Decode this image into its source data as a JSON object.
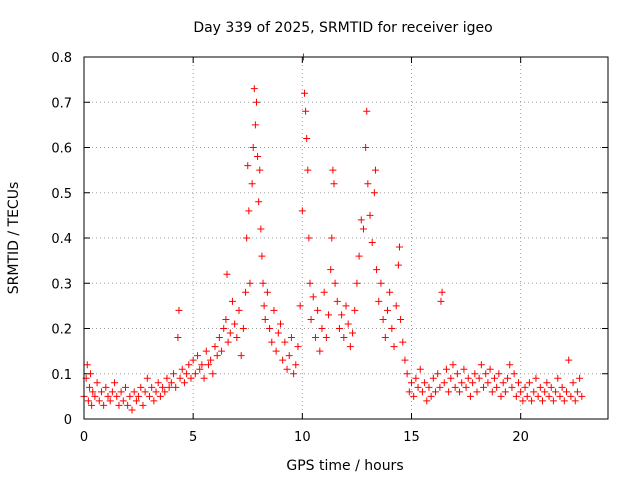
{
  "chart_data": {
    "type": "scatter",
    "title": "Day 339 of 2025, SRMTID for receiver igeo",
    "xlabel": "GPS time / hours",
    "ylabel": "SRMTID / TECUs",
    "xlim": [
      0,
      24
    ],
    "ylim": [
      0,
      0.8
    ],
    "xticks": [
      "0",
      "5",
      "10",
      "15",
      "20"
    ],
    "yticks": [
      "0",
      "0.1",
      "0.2",
      "0.3",
      "0.4",
      "0.5",
      "0.6",
      "0.7",
      "0.8"
    ],
    "grid": true,
    "marker": "+",
    "series": [
      {
        "name": "SRMTID",
        "color": "#ff0000",
        "points": [
          [
            0.0,
            0.05
          ],
          [
            0.1,
            0.09
          ],
          [
            0.15,
            0.12
          ],
          [
            0.2,
            0.04
          ],
          [
            0.25,
            0.07
          ],
          [
            0.3,
            0.1
          ],
          [
            0.35,
            0.03
          ],
          [
            0.4,
            0.06
          ],
          [
            0.5,
            0.05
          ],
          [
            0.6,
            0.08
          ],
          [
            0.7,
            0.04
          ],
          [
            0.8,
            0.06
          ],
          [
            0.9,
            0.03
          ],
          [
            1.0,
            0.07
          ],
          [
            1.1,
            0.05
          ],
          [
            1.2,
            0.04
          ],
          [
            1.3,
            0.06
          ],
          [
            1.4,
            0.08
          ],
          [
            1.5,
            0.05
          ],
          [
            1.6,
            0.03
          ],
          [
            1.7,
            0.06
          ],
          [
            1.8,
            0.04
          ],
          [
            1.9,
            0.07
          ],
          [
            2.0,
            0.03
          ],
          [
            2.1,
            0.05
          ],
          [
            2.2,
            0.02
          ],
          [
            2.3,
            0.06
          ],
          [
            2.4,
            0.04
          ],
          [
            2.5,
            0.05
          ],
          [
            2.6,
            0.07
          ],
          [
            2.7,
            0.03
          ],
          [
            2.8,
            0.06
          ],
          [
            2.9,
            0.09
          ],
          [
            3.0,
            0.05
          ],
          [
            3.1,
            0.07
          ],
          [
            3.2,
            0.04
          ],
          [
            3.3,
            0.06
          ],
          [
            3.4,
            0.08
          ],
          [
            3.5,
            0.05
          ],
          [
            3.6,
            0.07
          ],
          [
            3.7,
            0.06
          ],
          [
            3.8,
            0.09
          ],
          [
            3.9,
            0.07
          ],
          [
            4.0,
            0.08
          ],
          [
            4.1,
            0.1
          ],
          [
            4.2,
            0.07
          ],
          [
            4.3,
            0.18
          ],
          [
            4.35,
            0.24
          ],
          [
            4.4,
            0.09
          ],
          [
            4.5,
            0.11
          ],
          [
            4.6,
            0.08
          ],
          [
            4.7,
            0.1
          ],
          [
            4.8,
            0.12
          ],
          [
            4.9,
            0.09
          ],
          [
            5.0,
            0.13
          ],
          [
            5.1,
            0.1
          ],
          [
            5.2,
            0.14
          ],
          [
            5.3,
            0.11
          ],
          [
            5.4,
            0.12
          ],
          [
            5.5,
            0.09
          ],
          [
            5.6,
            0.15
          ],
          [
            5.7,
            0.12
          ],
          [
            5.8,
            0.13
          ],
          [
            5.9,
            0.1
          ],
          [
            6.0,
            0.16
          ],
          [
            6.1,
            0.14
          ],
          [
            6.2,
            0.18
          ],
          [
            6.3,
            0.15
          ],
          [
            6.4,
            0.2
          ],
          [
            6.5,
            0.22
          ],
          [
            6.55,
            0.32
          ],
          [
            6.6,
            0.17
          ],
          [
            6.7,
            0.19
          ],
          [
            6.8,
            0.26
          ],
          [
            6.9,
            0.21
          ],
          [
            7.0,
            0.18
          ],
          [
            7.1,
            0.24
          ],
          [
            7.2,
            0.14
          ],
          [
            7.3,
            0.2
          ],
          [
            7.4,
            0.28
          ],
          [
            7.45,
            0.4
          ],
          [
            7.5,
            0.56
          ],
          [
            7.55,
            0.46
          ],
          [
            7.6,
            0.3
          ],
          [
            7.7,
            0.52
          ],
          [
            7.75,
            0.6
          ],
          [
            7.8,
            0.73
          ],
          [
            7.85,
            0.65
          ],
          [
            7.9,
            0.7
          ],
          [
            7.95,
            0.58
          ],
          [
            8.0,
            0.48
          ],
          [
            8.05,
            0.55
          ],
          [
            8.1,
            0.42
          ],
          [
            8.15,
            0.36
          ],
          [
            8.2,
            0.3
          ],
          [
            8.25,
            0.25
          ],
          [
            8.3,
            0.22
          ],
          [
            8.4,
            0.28
          ],
          [
            8.5,
            0.2
          ],
          [
            8.6,
            0.17
          ],
          [
            8.7,
            0.24
          ],
          [
            8.8,
            0.15
          ],
          [
            8.9,
            0.19
          ],
          [
            9.0,
            0.21
          ],
          [
            9.1,
            0.13
          ],
          [
            9.2,
            0.17
          ],
          [
            9.3,
            0.11
          ],
          [
            9.4,
            0.14
          ],
          [
            9.5,
            0.18
          ],
          [
            9.6,
            0.1
          ],
          [
            9.7,
            0.12
          ],
          [
            9.8,
            0.16
          ],
          [
            9.9,
            0.25
          ],
          [
            10.0,
            0.46
          ],
          [
            10.05,
            0.8
          ],
          [
            10.1,
            0.72
          ],
          [
            10.15,
            0.68
          ],
          [
            10.2,
            0.62
          ],
          [
            10.25,
            0.55
          ],
          [
            10.3,
            0.4
          ],
          [
            10.35,
            0.3
          ],
          [
            10.4,
            0.22
          ],
          [
            10.5,
            0.27
          ],
          [
            10.6,
            0.18
          ],
          [
            10.7,
            0.24
          ],
          [
            10.8,
            0.15
          ],
          [
            10.9,
            0.2
          ],
          [
            11.0,
            0.28
          ],
          [
            11.1,
            0.18
          ],
          [
            11.2,
            0.23
          ],
          [
            11.3,
            0.33
          ],
          [
            11.35,
            0.4
          ],
          [
            11.4,
            0.55
          ],
          [
            11.45,
            0.52
          ],
          [
            11.5,
            0.3
          ],
          [
            11.6,
            0.26
          ],
          [
            11.7,
            0.2
          ],
          [
            11.8,
            0.23
          ],
          [
            11.9,
            0.18
          ],
          [
            12.0,
            0.25
          ],
          [
            12.1,
            0.21
          ],
          [
            12.2,
            0.16
          ],
          [
            12.3,
            0.19
          ],
          [
            12.4,
            0.24
          ],
          [
            12.5,
            0.3
          ],
          [
            12.6,
            0.36
          ],
          [
            12.7,
            0.44
          ],
          [
            12.8,
            0.42
          ],
          [
            12.9,
            0.6
          ],
          [
            12.95,
            0.68
          ],
          [
            13.0,
            0.52
          ],
          [
            13.1,
            0.45
          ],
          [
            13.2,
            0.39
          ],
          [
            13.3,
            0.5
          ],
          [
            13.35,
            0.55
          ],
          [
            13.4,
            0.33
          ],
          [
            13.5,
            0.26
          ],
          [
            13.6,
            0.3
          ],
          [
            13.7,
            0.22
          ],
          [
            13.8,
            0.18
          ],
          [
            13.9,
            0.24
          ],
          [
            14.0,
            0.28
          ],
          [
            14.1,
            0.2
          ],
          [
            14.2,
            0.16
          ],
          [
            14.3,
            0.25
          ],
          [
            14.4,
            0.34
          ],
          [
            14.45,
            0.38
          ],
          [
            14.5,
            0.22
          ],
          [
            14.6,
            0.17
          ],
          [
            14.7,
            0.13
          ],
          [
            14.8,
            0.1
          ],
          [
            14.9,
            0.06
          ],
          [
            15.0,
            0.08
          ],
          [
            15.1,
            0.05
          ],
          [
            15.2,
            0.09
          ],
          [
            15.3,
            0.07
          ],
          [
            15.4,
            0.11
          ],
          [
            15.5,
            0.06
          ],
          [
            15.6,
            0.08
          ],
          [
            15.7,
            0.04
          ],
          [
            15.8,
            0.07
          ],
          [
            15.9,
            0.05
          ],
          [
            16.0,
            0.09
          ],
          [
            16.1,
            0.06
          ],
          [
            16.2,
            0.1
          ],
          [
            16.3,
            0.07
          ],
          [
            16.35,
            0.26
          ],
          [
            16.4,
            0.28
          ],
          [
            16.5,
            0.08
          ],
          [
            16.6,
            0.11
          ],
          [
            16.7,
            0.06
          ],
          [
            16.8,
            0.09
          ],
          [
            16.9,
            0.12
          ],
          [
            17.0,
            0.07
          ],
          [
            17.1,
            0.1
          ],
          [
            17.2,
            0.06
          ],
          [
            17.3,
            0.08
          ],
          [
            17.4,
            0.11
          ],
          [
            17.5,
            0.07
          ],
          [
            17.6,
            0.09
          ],
          [
            17.7,
            0.05
          ],
          [
            17.8,
            0.08
          ],
          [
            17.9,
            0.1
          ],
          [
            18.0,
            0.06
          ],
          [
            18.1,
            0.09
          ],
          [
            18.2,
            0.12
          ],
          [
            18.3,
            0.07
          ],
          [
            18.4,
            0.1
          ],
          [
            18.5,
            0.08
          ],
          [
            18.6,
            0.11
          ],
          [
            18.7,
            0.06
          ],
          [
            18.8,
            0.09
          ],
          [
            18.9,
            0.07
          ],
          [
            19.0,
            0.1
          ],
          [
            19.1,
            0.05
          ],
          [
            19.2,
            0.08
          ],
          [
            19.3,
            0.06
          ],
          [
            19.4,
            0.09
          ],
          [
            19.5,
            0.12
          ],
          [
            19.6,
            0.07
          ],
          [
            19.7,
            0.1
          ],
          [
            19.8,
            0.05
          ],
          [
            19.9,
            0.08
          ],
          [
            20.0,
            0.06
          ],
          [
            20.1,
            0.04
          ],
          [
            20.2,
            0.07
          ],
          [
            20.3,
            0.05
          ],
          [
            20.4,
            0.08
          ],
          [
            20.5,
            0.04
          ],
          [
            20.6,
            0.06
          ],
          [
            20.7,
            0.09
          ],
          [
            20.8,
            0.05
          ],
          [
            20.9,
            0.07
          ],
          [
            21.0,
            0.04
          ],
          [
            21.1,
            0.06
          ],
          [
            21.2,
            0.08
          ],
          [
            21.3,
            0.05
          ],
          [
            21.4,
            0.07
          ],
          [
            21.5,
            0.04
          ],
          [
            21.6,
            0.06
          ],
          [
            21.7,
            0.09
          ],
          [
            21.8,
            0.05
          ],
          [
            21.9,
            0.07
          ],
          [
            22.0,
            0.04
          ],
          [
            22.1,
            0.06
          ],
          [
            22.2,
            0.13
          ],
          [
            22.3,
            0.05
          ],
          [
            22.4,
            0.08
          ],
          [
            22.5,
            0.04
          ],
          [
            22.6,
            0.06
          ],
          [
            22.7,
            0.09
          ],
          [
            22.8,
            0.05
          ]
        ]
      }
    ]
  }
}
